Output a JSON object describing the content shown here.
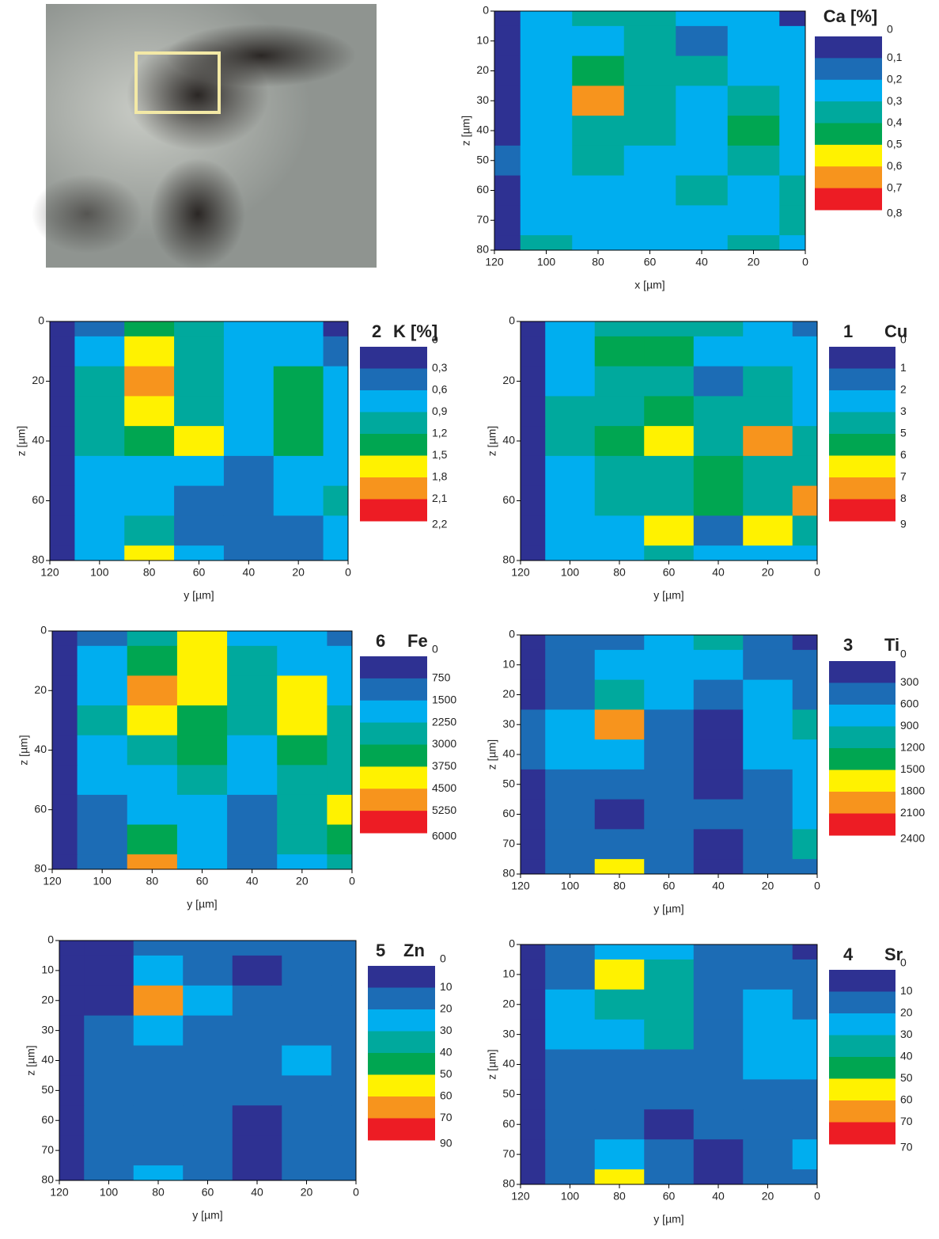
{
  "chart_data": [
    {
      "type": "contour",
      "title": "Ca [%]",
      "x_label": "x [µm]",
      "y_label": "z [µm]",
      "xlim": [
        120,
        0
      ],
      "xticks": [
        120,
        100,
        80,
        60,
        40,
        20,
        0
      ],
      "ylim": [
        80,
        0
      ],
      "yticks": [
        0,
        10,
        20,
        30,
        40,
        50,
        60,
        70,
        80
      ],
      "levels": [
        0,
        {
          "value": 0.1,
          "label": "0,1"
        },
        {
          "value": 0.2,
          "label": "0,2"
        },
        {
          "value": 0.3,
          "label": "0,3"
        },
        {
          "value": 0.4,
          "label": "0,4"
        },
        {
          "value": 0.5,
          "label": "0,5"
        },
        {
          "value": 0.6,
          "label": "0,6"
        },
        {
          "value": 0.7,
          "label": "0,7"
        },
        {
          "value": 0.8,
          "label": "0,8"
        }
      ],
      "colors": [
        "#2e3192",
        "#1c6cb5",
        "#00aeef",
        "#00a99d",
        "#00a651",
        "#fff200",
        "#f7941d",
        "#ed1c24"
      ],
      "x": [
        120,
        100,
        80,
        60,
        40,
        20,
        0
      ],
      "y": [
        0,
        10,
        20,
        30,
        40,
        50,
        60,
        70,
        80
      ],
      "z": [
        [
          0.05,
          0.25,
          0.35,
          0.35,
          0.25,
          0.25,
          0.05
        ],
        [
          0.05,
          0.25,
          0.25,
          0.35,
          0.15,
          0.25,
          0.25
        ],
        [
          0.05,
          0.25,
          0.45,
          0.35,
          0.35,
          0.25,
          0.25
        ],
        [
          0.05,
          0.25,
          0.65,
          0.35,
          0.25,
          0.35,
          0.25
        ],
        [
          0.05,
          0.25,
          0.35,
          0.35,
          0.25,
          0.45,
          0.25
        ],
        [
          0.15,
          0.25,
          0.35,
          0.25,
          0.25,
          0.35,
          0.25
        ],
        [
          0.05,
          0.25,
          0.25,
          0.25,
          0.35,
          0.25,
          0.35
        ],
        [
          0.05,
          0.25,
          0.25,
          0.25,
          0.25,
          0.25,
          0.35
        ],
        [
          0.05,
          0.35,
          0.25,
          0.25,
          0.25,
          0.35,
          0.25
        ]
      ]
    },
    {
      "type": "contour",
      "panel_number": "2",
      "title": "K [%]",
      "x_label": "y [µm]",
      "y_label": "z [µm]",
      "xlim": [
        120,
        0
      ],
      "xticks": [
        120,
        100,
        80,
        60,
        40,
        20,
        0
      ],
      "ylim": [
        80,
        0
      ],
      "yticks": [
        0,
        20,
        40,
        60,
        80
      ],
      "levels": [
        0,
        {
          "value": 0.3,
          "label": "0,3"
        },
        {
          "value": 0.6,
          "label": "0,6"
        },
        {
          "value": 0.9,
          "label": "0,9"
        },
        {
          "value": 1.2,
          "label": "1,2"
        },
        {
          "value": 1.5,
          "label": "1,5"
        },
        {
          "value": 1.8,
          "label": "1,8"
        },
        {
          "value": 2.1,
          "label": "2,1"
        },
        {
          "value": 2.2,
          "label": "2,2"
        }
      ],
      "colors": [
        "#2e3192",
        "#1c6cb5",
        "#00aeef",
        "#00a99d",
        "#00a651",
        "#fff200",
        "#f7941d",
        "#ed1c24"
      ],
      "x": [
        120,
        100,
        80,
        60,
        40,
        20,
        0
      ],
      "y": [
        0,
        10,
        20,
        30,
        40,
        50,
        60,
        70,
        80
      ],
      "z": [
        [
          0.15,
          0.45,
          1.35,
          1.05,
          0.75,
          0.75,
          0.15
        ],
        [
          0.15,
          0.75,
          1.65,
          1.05,
          0.75,
          0.75,
          0.45
        ],
        [
          0.15,
          1.05,
          1.95,
          1.05,
          0.75,
          1.35,
          0.75
        ],
        [
          0.15,
          1.05,
          1.65,
          1.05,
          0.75,
          1.35,
          0.75
        ],
        [
          0.15,
          1.05,
          1.35,
          1.65,
          0.75,
          1.35,
          0.75
        ],
        [
          0.15,
          0.75,
          0.75,
          0.75,
          0.45,
          0.75,
          0.75
        ],
        [
          0.15,
          0.75,
          0.75,
          0.45,
          0.45,
          0.75,
          1.05
        ],
        [
          0.15,
          0.75,
          1.05,
          0.45,
          0.45,
          0.45,
          0.75
        ],
        [
          0.15,
          0.75,
          1.65,
          0.75,
          0.45,
          0.45,
          0.75
        ]
      ]
    },
    {
      "type": "contour",
      "panel_number": "1",
      "title": "Cu",
      "x_label": "y [µm]",
      "y_label": "z [µm]",
      "xlim": [
        120,
        0
      ],
      "xticks": [
        120,
        100,
        80,
        60,
        40,
        20,
        0
      ],
      "ylim": [
        80,
        0
      ],
      "yticks": [
        0,
        20,
        40,
        60,
        80
      ],
      "levels": [
        0,
        1,
        2,
        3,
        5,
        6,
        7,
        8,
        9
      ],
      "colors": [
        "#2e3192",
        "#1c6cb5",
        "#00aeef",
        "#00a99d",
        "#00a651",
        "#fff200",
        "#f7941d",
        "#ed1c24"
      ],
      "x": [
        120,
        100,
        80,
        60,
        40,
        20,
        0
      ],
      "y": [
        0,
        10,
        20,
        30,
        40,
        50,
        60,
        70,
        80
      ],
      "z": [
        [
          0.5,
          2.5,
          4,
          4,
          4,
          2.5,
          1.5
        ],
        [
          0.5,
          2.5,
          5.5,
          5.5,
          2.5,
          2.5,
          2.5
        ],
        [
          0.5,
          2.5,
          4,
          4,
          1.5,
          4,
          2.5
        ],
        [
          0.5,
          4,
          4,
          5.5,
          4,
          4,
          2.5
        ],
        [
          0.5,
          4,
          5.5,
          6.5,
          4,
          7.5,
          4
        ],
        [
          0.5,
          2.5,
          4,
          4,
          5.5,
          4,
          4
        ],
        [
          0.5,
          2.5,
          4,
          4,
          5.5,
          4,
          7.5
        ],
        [
          0.5,
          2.5,
          2.5,
          6.5,
          1.5,
          6.5,
          4
        ],
        [
          0.5,
          2.5,
          2.5,
          4,
          2.5,
          2.5,
          2.5
        ]
      ]
    },
    {
      "type": "contour",
      "panel_number": "6",
      "title": "Fe",
      "x_label": "y [µm]",
      "y_label": "z [µm]",
      "xlim": [
        120,
        0
      ],
      "xticks": [
        120,
        100,
        80,
        60,
        40,
        20,
        0
      ],
      "ylim": [
        80,
        0
      ],
      "yticks": [
        0,
        20,
        40,
        60,
        80
      ],
      "levels": [
        0,
        750,
        1500,
        2250,
        3000,
        3750,
        4500,
        5250,
        6000
      ],
      "colors": [
        "#2e3192",
        "#1c6cb5",
        "#00aeef",
        "#00a99d",
        "#00a651",
        "#fff200",
        "#f7941d",
        "#ed1c24"
      ],
      "x": [
        120,
        100,
        80,
        60,
        40,
        20,
        0
      ],
      "y": [
        0,
        10,
        20,
        30,
        40,
        50,
        60,
        70,
        80
      ],
      "z": [
        [
          375,
          1125,
          2625,
          4125,
          1875,
          1875,
          1125
        ],
        [
          375,
          1875,
          3375,
          4125,
          2625,
          1875,
          1875
        ],
        [
          375,
          1875,
          4875,
          4125,
          2625,
          4125,
          1875
        ],
        [
          375,
          2625,
          4125,
          3375,
          2625,
          4125,
          2625
        ],
        [
          375,
          1875,
          2625,
          3375,
          1875,
          3375,
          2625
        ],
        [
          375,
          1875,
          1875,
          2625,
          1875,
          2625,
          2625
        ],
        [
          375,
          1125,
          1875,
          1875,
          1125,
          2625,
          4125
        ],
        [
          375,
          1125,
          3375,
          1875,
          1125,
          2625,
          3375
        ],
        [
          375,
          1125,
          4875,
          1875,
          1125,
          1875,
          2625
        ]
      ]
    },
    {
      "type": "contour",
      "panel_number": "3",
      "title": "Ti",
      "x_label": "y [µm]",
      "y_label": "z [µm]",
      "xlim": [
        120,
        0
      ],
      "xticks": [
        120,
        100,
        80,
        60,
        40,
        20,
        0
      ],
      "ylim": [
        80,
        0
      ],
      "yticks": [
        0,
        10,
        20,
        30,
        40,
        50,
        60,
        70,
        80
      ],
      "levels": [
        0,
        300,
        600,
        900,
        1200,
        1500,
        1800,
        2100,
        2400
      ],
      "colors": [
        "#2e3192",
        "#1c6cb5",
        "#00aeef",
        "#00a99d",
        "#00a651",
        "#fff200",
        "#f7941d",
        "#ed1c24"
      ],
      "x": [
        120,
        100,
        80,
        60,
        40,
        20,
        0
      ],
      "y": [
        0,
        10,
        20,
        30,
        40,
        50,
        60,
        70,
        80
      ],
      "z": [
        [
          150,
          450,
          450,
          750,
          1050,
          450,
          150
        ],
        [
          150,
          450,
          750,
          750,
          750,
          450,
          450
        ],
        [
          150,
          450,
          1050,
          750,
          450,
          750,
          450
        ],
        [
          450,
          750,
          1950,
          450,
          150,
          750,
          1050
        ],
        [
          450,
          750,
          750,
          450,
          150,
          750,
          750
        ],
        [
          150,
          450,
          450,
          450,
          150,
          450,
          750
        ],
        [
          150,
          450,
          150,
          450,
          450,
          450,
          750
        ],
        [
          150,
          450,
          450,
          450,
          150,
          450,
          1050
        ],
        [
          150,
          450,
          1650,
          450,
          150,
          450,
          450
        ]
      ]
    },
    {
      "type": "contour",
      "panel_number": "5",
      "title": "Zn",
      "x_label": "y [µm]",
      "y_label": "z [µm]",
      "xlim": [
        120,
        0
      ],
      "xticks": [
        120,
        100,
        80,
        60,
        40,
        20,
        0
      ],
      "ylim": [
        80,
        0
      ],
      "yticks": [
        0,
        10,
        20,
        30,
        40,
        50,
        60,
        70,
        80
      ],
      "levels": [
        0,
        10,
        20,
        30,
        40,
        50,
        60,
        70,
        90
      ],
      "colors": [
        "#2e3192",
        "#1c6cb5",
        "#00aeef",
        "#00a99d",
        "#00a651",
        "#fff200",
        "#f7941d",
        "#ed1c24"
      ],
      "x": [
        120,
        100,
        80,
        60,
        40,
        20,
        0
      ],
      "y": [
        0,
        10,
        20,
        30,
        40,
        50,
        60,
        70,
        80
      ],
      "z": [
        [
          5,
          5,
          15,
          15,
          15,
          15,
          15
        ],
        [
          5,
          5,
          25,
          15,
          5,
          15,
          15
        ],
        [
          5,
          5,
          65,
          25,
          15,
          15,
          15
        ],
        [
          5,
          15,
          25,
          15,
          15,
          15,
          15
        ],
        [
          5,
          15,
          15,
          15,
          15,
          25,
          15
        ],
        [
          5,
          15,
          15,
          15,
          15,
          15,
          15
        ],
        [
          5,
          15,
          15,
          15,
          5,
          15,
          15
        ],
        [
          5,
          15,
          15,
          15,
          5,
          15,
          15
        ],
        [
          5,
          15,
          25,
          15,
          5,
          15,
          15
        ]
      ]
    },
    {
      "type": "contour",
      "panel_number": "4",
      "title": "Sr",
      "x_label": "y [µm]",
      "y_label": "z [µm]",
      "xlim": [
        120,
        0
      ],
      "xticks": [
        120,
        100,
        80,
        60,
        40,
        20,
        0
      ],
      "ylim": [
        80,
        0
      ],
      "yticks": [
        0,
        10,
        20,
        30,
        40,
        50,
        60,
        70,
        80
      ],
      "levels": [
        0,
        10,
        20,
        30,
        40,
        50,
        60,
        70,
        70
      ],
      "colors": [
        "#2e3192",
        "#1c6cb5",
        "#00aeef",
        "#00a99d",
        "#00a651",
        "#fff200",
        "#f7941d",
        "#ed1c24"
      ],
      "x": [
        120,
        100,
        80,
        60,
        40,
        20,
        0
      ],
      "y": [
        0,
        10,
        20,
        30,
        40,
        50,
        60,
        70,
        80
      ],
      "z": [
        [
          5,
          15,
          25,
          25,
          15,
          15,
          5
        ],
        [
          5,
          15,
          55,
          35,
          15,
          15,
          15
        ],
        [
          5,
          25,
          35,
          35,
          15,
          25,
          15
        ],
        [
          5,
          25,
          25,
          35,
          15,
          25,
          25
        ],
        [
          5,
          15,
          15,
          15,
          15,
          25,
          25
        ],
        [
          5,
          15,
          15,
          15,
          15,
          15,
          15
        ],
        [
          5,
          15,
          15,
          5,
          15,
          15,
          15
        ],
        [
          5,
          15,
          25,
          15,
          5,
          15,
          25
        ],
        [
          5,
          15,
          55,
          15,
          5,
          15,
          15
        ]
      ]
    }
  ]
}
